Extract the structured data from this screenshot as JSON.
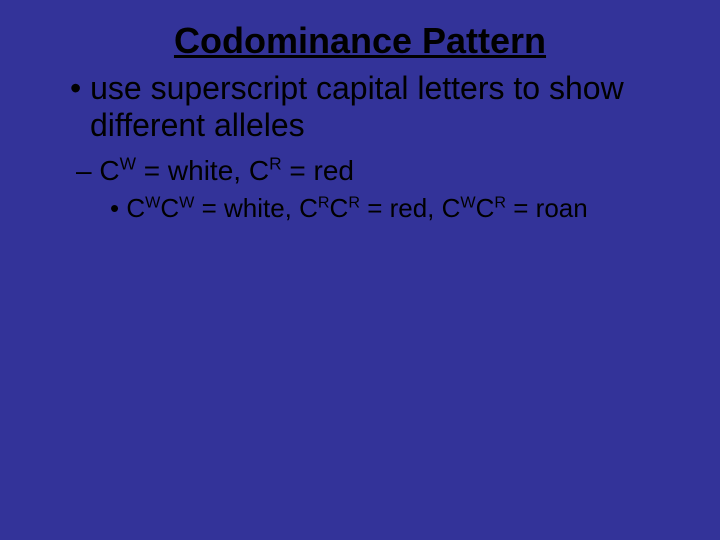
{
  "slide": {
    "background_color": "#333399",
    "text_color": "#000000",
    "font_family": "Arial",
    "title": "Codominance Pattern",
    "title_fontsize": 36,
    "title_underline": true,
    "bullets": {
      "level1": {
        "marker": "•",
        "fontsize": 32,
        "text": "use superscript capital letters to show different alleles"
      },
      "level2": {
        "marker": "–",
        "fontsize": 28,
        "parts": [
          {
            "base": "C",
            "sup": "W"
          },
          {
            "text": " = white, "
          },
          {
            "base": "C",
            "sup": "R"
          },
          {
            "text": " = red"
          }
        ],
        "plain": "CW = white, CR = red"
      },
      "level3": {
        "marker": "•",
        "fontsize": 26,
        "parts": [
          {
            "base": "C",
            "sup": "W"
          },
          {
            "base": "C",
            "sup": "W"
          },
          {
            "text": " = white, "
          },
          {
            "base": "C",
            "sup": "R"
          },
          {
            "base": "C",
            "sup": "R"
          },
          {
            "text": " = red, "
          },
          {
            "base": "C",
            "sup": "W"
          },
          {
            "base": "C",
            "sup": "R"
          },
          {
            "text": " = roan"
          }
        ],
        "plain": "CWCW = white, CRCR = red, CWCR = roan"
      }
    }
  }
}
